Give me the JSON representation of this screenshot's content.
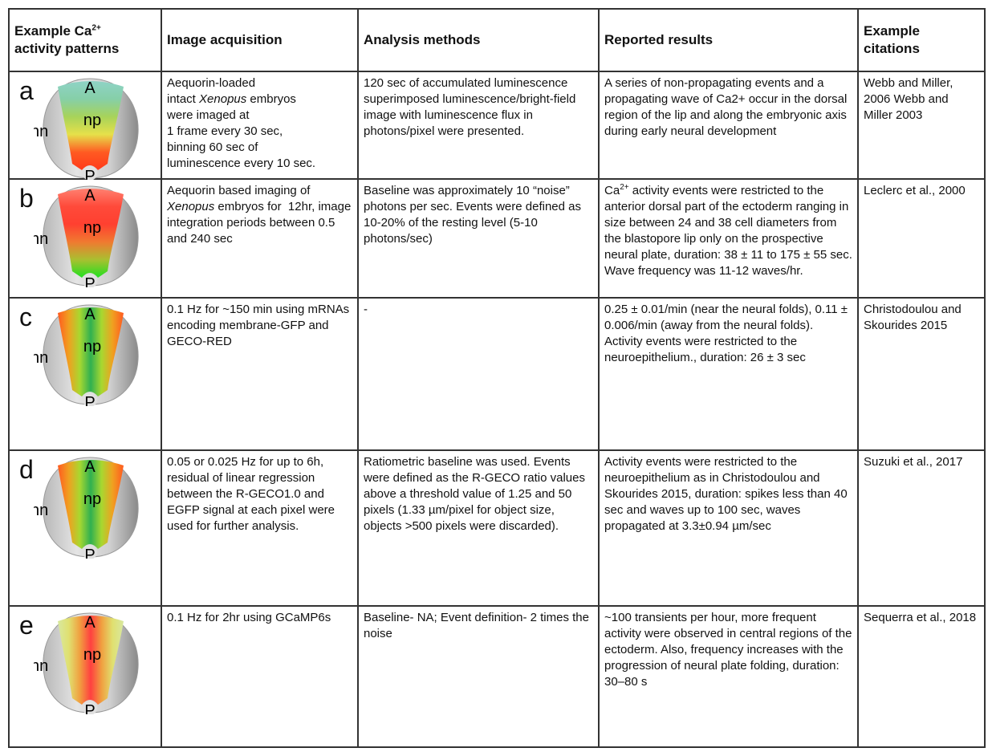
{
  "header": {
    "col1_prefix": "Example Ca",
    "col1_sup": "2+",
    "col1_suffix": "activity patterns",
    "col2": "Image acquisition",
    "col3": "Analysis methods",
    "col4": "Reported results",
    "col5": "Example citations"
  },
  "embryo_labels": {
    "anterior": "A",
    "neural_plate": "np",
    "non_neural": "nn",
    "posterior": "P"
  },
  "rows": [
    {
      "letter": "a",
      "gradient": {
        "direction": "vertical",
        "colors": [
          "#8fd3c6",
          "#86cfa8",
          "#a7d35a",
          "#e6e04a",
          "#ff5a22",
          "#ff3a1a"
        ]
      },
      "acquisition_html": "Aequorin-loaded<br>intact <i>Xenopus</i> embryos<br>were imaged at<br>1 frame every 30 sec,<br>binning 60 sec of<br>luminescence every 10 sec.",
      "acquisition": "Aequorin-loaded intact Xenopus embryos were imaged at 1 frame every 30 sec, binning 60 sec of luminescence every 10 sec.",
      "analysis": "120 sec of accumulated luminescence superimposed luminescence/bright-field image with luminescence flux in photons/pixel were presented.",
      "results": "A series of non-propagating events and a propagating wave of Ca2+ occur in the dorsal region of the lip and along the embryonic axis during early neural development",
      "citations": "Webb and Miller, 2006 Webb and Miller 2003"
    },
    {
      "letter": "b",
      "gradient": {
        "direction": "vertical",
        "colors": [
          "#ff8070",
          "#ff4a3a",
          "#ff4030",
          "#f07a30",
          "#a8c030",
          "#20e020"
        ]
      },
      "acquisition_html": "Aequorin based imaging of <i>Xenopus</i> embryos for&nbsp; 12hr, image integration periods between 0.5 and 240 sec",
      "acquisition": "Aequorin based imaging of Xenopus embryos for 12hr, image integration periods between 0.5 and 240 sec",
      "analysis": "Baseline was approximately 10 “noise” photons per sec. Events were defined as 10-20% of the resting level (5-10 photons/sec)",
      "results_sup": "2+",
      "results_prefix": "Ca",
      "results": " activity events were restricted to the anterior dorsal part of the ectoderm ranging in size between 24 and 38 cell diameters from the blastopore lip only on the prospective neural plate, duration: 38 ± 11 to 175 ± 55 sec. Wave frequency was 11-12 waves/hr.",
      "citations": "Leclerc et al., 2000"
    },
    {
      "letter": "c",
      "gradient": {
        "direction": "horizontal",
        "colors": [
          "#ff5a20",
          "#f0a020",
          "#a8d830",
          "#30b050",
          "#a8d830",
          "#f0a020",
          "#ff5a20"
        ]
      },
      "acquisition": "0.1 Hz for  ~150 min using mRNAs encoding membrane-GFP and GECO-RED",
      "analysis": "-",
      "results": "0.25 ± 0.01/min (near the neural folds), 0.11 ± 0.006/min (away from the neural folds). Activity events were restricted to the neuroepithelium., duration: 26 ± 3 sec",
      "citations": "Christodoulou and Skourides 2015"
    },
    {
      "letter": "d",
      "gradient": {
        "direction": "horizontal",
        "colors": [
          "#ff5a20",
          "#f0a020",
          "#a8d830",
          "#30b050",
          "#a8d830",
          "#f0a020",
          "#ff5a20"
        ]
      },
      "acquisition": "0.05 or 0.025 Hz for up to 6h, residual of linear regression between the R-GECO1.0 and EGFP signal at each pixel were used for further analysis.",
      "analysis": "Ratiometric baseline was used. Events were defined as the R-GECO ratio values above a threshold value of 1.25 and 50 pixels (1.33 µm/pixel for object size, objects >500 pixels were discarded).",
      "results": "Activity events were restricted to the neuroepithelium as in Christodoulou and Skourides 2015, duration: spikes less than 40 sec and waves up to 100 sec, waves propagated at 3.3±0.94 µm/sec",
      "citations": "Suzuki et al., 2017"
    },
    {
      "letter": "e",
      "gradient": {
        "direction": "horizontal",
        "colors": [
          "#d8e8a0",
          "#e0e070",
          "#f0a040",
          "#ff4040",
          "#f0a040",
          "#e0e070",
          "#d8e8a0"
        ]
      },
      "acquisition": "0.1 Hz for  2hr using GCaMP6s",
      "analysis": "Baseline- NA; Event definition- 2 times the noise",
      "results": "~100 transients per hour, more frequent activity were observed in central regions of the ectoderm. Also, frequency increases with the progression of neural plate folding, duration: 30–80 s",
      "citations": "Sequerra et al., 2018"
    }
  ]
}
